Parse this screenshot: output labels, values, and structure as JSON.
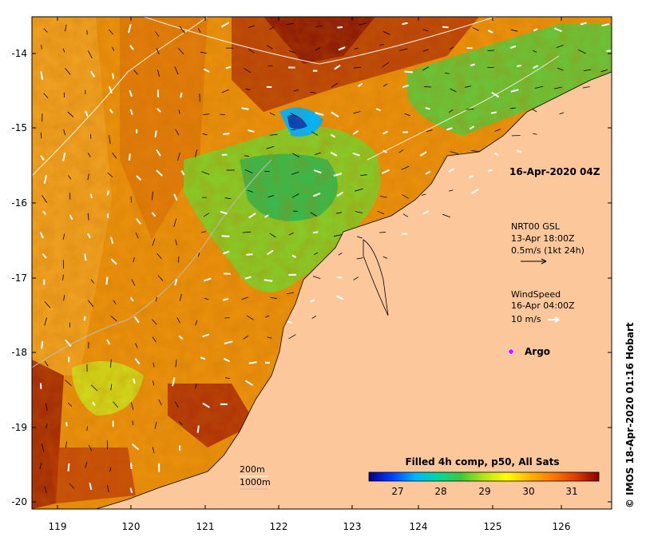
{
  "map": {
    "date_label": "16-Apr-2020 04Z",
    "lon_ticks": [
      "119",
      "120",
      "121",
      "122",
      "123",
      "124",
      "125",
      "126"
    ],
    "lat_ticks": [
      "-14",
      "-15",
      "-16",
      "-17",
      "-18",
      "-19",
      "-20"
    ],
    "current_legend": {
      "line1": "NRT00 GSL",
      "line2": "13-Apr 18:00Z",
      "line3": "0.5m/s (1kt 24h)"
    },
    "wind_legend": {
      "line1": "WindSpeed",
      "line2": "16-Apr 04:00Z",
      "line3": "10 m/s"
    },
    "argo_label": "Argo",
    "isobath_200": "200m",
    "isobath_1000": "1000m",
    "colorbar": {
      "title": "Filled 4h comp, p50, All Sats",
      "ticks": [
        "27",
        "28",
        "29",
        "30",
        "31"
      ],
      "colors": [
        "#00008b",
        "#0040ff",
        "#00b4ff",
        "#00d8a0",
        "#3cc83c",
        "#b4e614",
        "#ffff00",
        "#ffb400",
        "#ff7800",
        "#dc3c00",
        "#8b0000"
      ]
    },
    "credit": "© IMOS 18-Apr-2020 01:16 Hobart",
    "colors": {
      "land": "#fcc89b",
      "sst_base": "#e8900c"
    }
  }
}
